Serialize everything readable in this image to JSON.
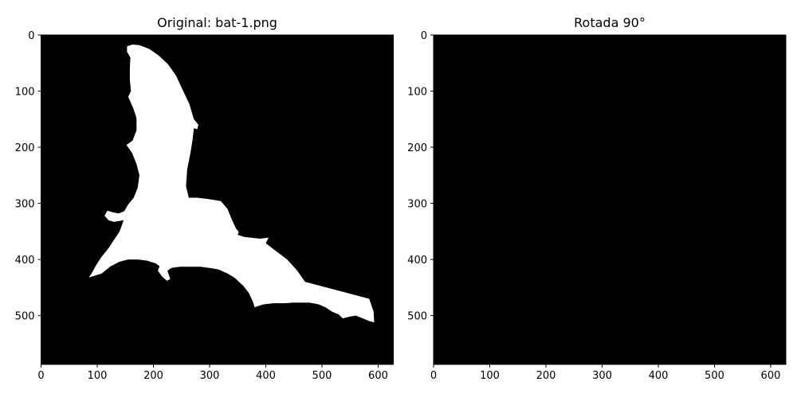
{
  "chart_data": [
    {
      "type": "heatmap",
      "title": "Original: bat-1.png",
      "xlabel": "",
      "ylabel": "",
      "xlim": [
        0,
        627
      ],
      "ylim": [
        587,
        0
      ],
      "xticks": [
        0,
        100,
        200,
        300,
        400,
        500,
        600
      ],
      "yticks": [
        0,
        100,
        200,
        300,
        400,
        500
      ],
      "grid": false,
      "background_color": "#000000",
      "foreground_color": "#ffffff",
      "shape_outline": [
        [
          153,
          20
        ],
        [
          163,
          17
        ],
        [
          175,
          18
        ],
        [
          193,
          25
        ],
        [
          210,
          37
        ],
        [
          226,
          52
        ],
        [
          240,
          72
        ],
        [
          253,
          100
        ],
        [
          264,
          123
        ],
        [
          272,
          150
        ],
        [
          280,
          160
        ],
        [
          278,
          168
        ],
        [
          272,
          166
        ],
        [
          270,
          185
        ],
        [
          266,
          210
        ],
        [
          260,
          240
        ],
        [
          258,
          270
        ],
        [
          263,
          290
        ],
        [
          278,
          290
        ],
        [
          302,
          293
        ],
        [
          320,
          296
        ],
        [
          332,
          310
        ],
        [
          340,
          330
        ],
        [
          347,
          345
        ],
        [
          352,
          351
        ],
        [
          350,
          356
        ],
        [
          362,
          360
        ],
        [
          390,
          363
        ],
        [
          405,
          361
        ],
        [
          400,
          371
        ],
        [
          418,
          385
        ],
        [
          438,
          400
        ],
        [
          456,
          420
        ],
        [
          470,
          440
        ],
        [
          584,
          470
        ],
        [
          592,
          493
        ],
        [
          593,
          512
        ],
        [
          585,
          510
        ],
        [
          573,
          505
        ],
        [
          560,
          500
        ],
        [
          548,
          502
        ],
        [
          537,
          505
        ],
        [
          530,
          498
        ],
        [
          518,
          493
        ],
        [
          506,
          485
        ],
        [
          494,
          480
        ],
        [
          478,
          477
        ],
        [
          462,
          477
        ],
        [
          448,
          477
        ],
        [
          433,
          478
        ],
        [
          414,
          478
        ],
        [
          396,
          480
        ],
        [
          380,
          485
        ],
        [
          377,
          475
        ],
        [
          370,
          460
        ],
        [
          360,
          447
        ],
        [
          345,
          433
        ],
        [
          332,
          425
        ],
        [
          316,
          418
        ],
        [
          300,
          415
        ],
        [
          284,
          413
        ],
        [
          266,
          413
        ],
        [
          247,
          413
        ],
        [
          232,
          415
        ],
        [
          225,
          420
        ],
        [
          230,
          435
        ],
        [
          224,
          438
        ],
        [
          215,
          430
        ],
        [
          208,
          420
        ],
        [
          211,
          412
        ],
        [
          204,
          407
        ],
        [
          188,
          402
        ],
        [
          172,
          400
        ],
        [
          155,
          400
        ],
        [
          140,
          404
        ],
        [
          124,
          412
        ],
        [
          108,
          425
        ],
        [
          92,
          430
        ],
        [
          85,
          432
        ],
        [
          90,
          425
        ],
        [
          98,
          410
        ],
        [
          108,
          395
        ],
        [
          120,
          380
        ],
        [
          130,
          365
        ],
        [
          140,
          350
        ],
        [
          147,
          330
        ],
        [
          130,
          333
        ],
        [
          120,
          330
        ],
        [
          113,
          322
        ],
        [
          118,
          313
        ],
        [
          128,
          316
        ],
        [
          138,
          318
        ],
        [
          148,
          314
        ],
        [
          155,
          302
        ],
        [
          165,
          290
        ],
        [
          172,
          272
        ],
        [
          175,
          250
        ],
        [
          170,
          230
        ],
        [
          162,
          210
        ],
        [
          152,
          196
        ],
        [
          163,
          188
        ],
        [
          170,
          170
        ],
        [
          170,
          148
        ],
        [
          164,
          130
        ],
        [
          155,
          110
        ],
        [
          160,
          100
        ],
        [
          158,
          80
        ],
        [
          158,
          60
        ],
        [
          159,
          40
        ],
        [
          153,
          30
        ]
      ]
    },
    {
      "type": "heatmap",
      "title": "Rotada 90°",
      "xlabel": "",
      "ylabel": "",
      "xlim": [
        0,
        627
      ],
      "ylim": [
        587,
        0
      ],
      "xticks": [
        0,
        100,
        200,
        300,
        400,
        500,
        600
      ],
      "yticks": [
        0,
        100,
        200,
        300,
        400,
        500
      ],
      "grid": false,
      "background_color": "#000000",
      "shape_outline": []
    }
  ]
}
